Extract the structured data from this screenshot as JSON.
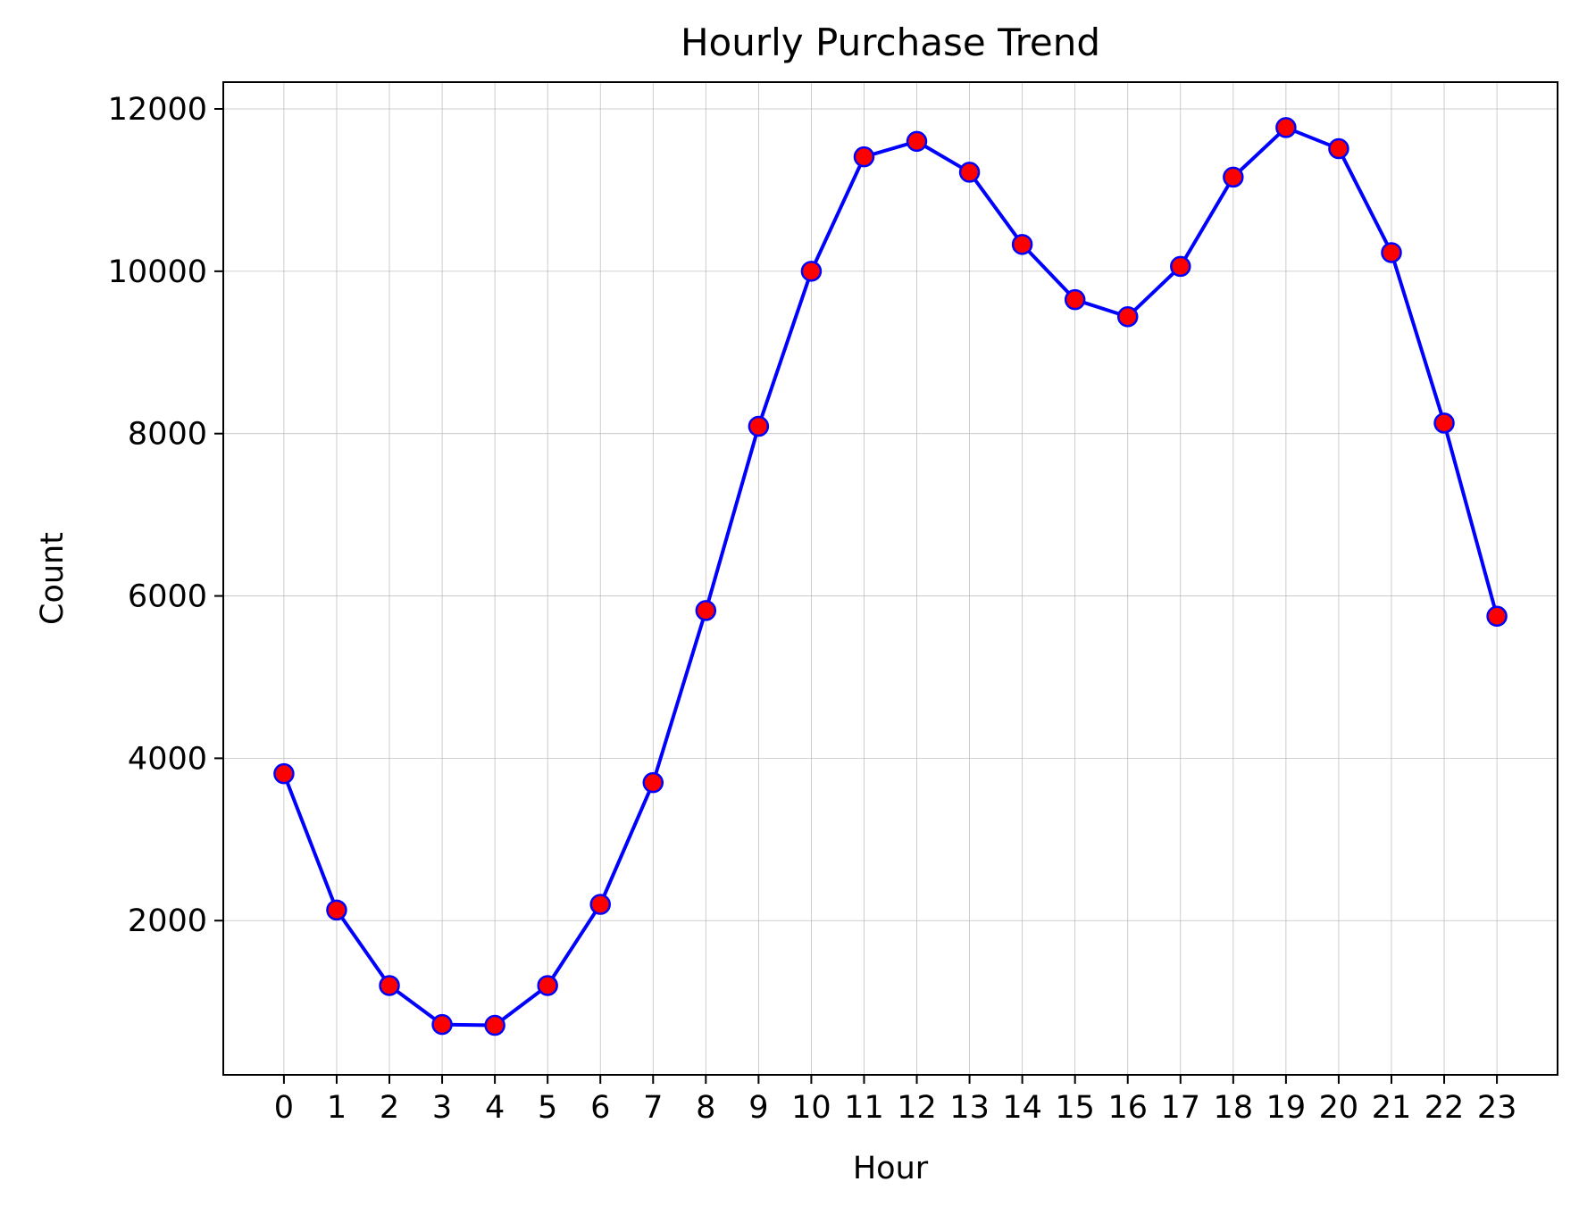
{
  "chart_data": {
    "type": "line",
    "title": "Hourly Purchase Trend",
    "xlabel": "Hour",
    "ylabel": "Count",
    "x": [
      0,
      1,
      2,
      3,
      4,
      5,
      6,
      7,
      8,
      9,
      10,
      11,
      12,
      13,
      14,
      15,
      16,
      17,
      18,
      19,
      20,
      21,
      22,
      23
    ],
    "xticks": [
      "0",
      "1",
      "2",
      "3",
      "4",
      "5",
      "6",
      "7",
      "8",
      "9",
      "10",
      "11",
      "12",
      "13",
      "14",
      "15",
      "16",
      "17",
      "18",
      "19",
      "20",
      "21",
      "22",
      "23"
    ],
    "yticks": [
      "2000",
      "4000",
      "6000",
      "8000",
      "10000",
      "12000"
    ],
    "xlim": [
      -1.15,
      24.15
    ],
    "ylim": [
      100,
      12330
    ],
    "grid": true,
    "series": [
      {
        "values": [
          3810,
          2130,
          1200,
          720,
          710,
          1200,
          2200,
          3700,
          5820,
          8090,
          10000,
          11410,
          11600,
          11220,
          10330,
          9650,
          9440,
          10060,
          11160,
          11770,
          11510,
          10230,
          8130,
          5750
        ],
        "line_color": "#0000ff",
        "marker_face_color": "#ff0000",
        "marker_edge_color": "#0000ff"
      }
    ]
  }
}
